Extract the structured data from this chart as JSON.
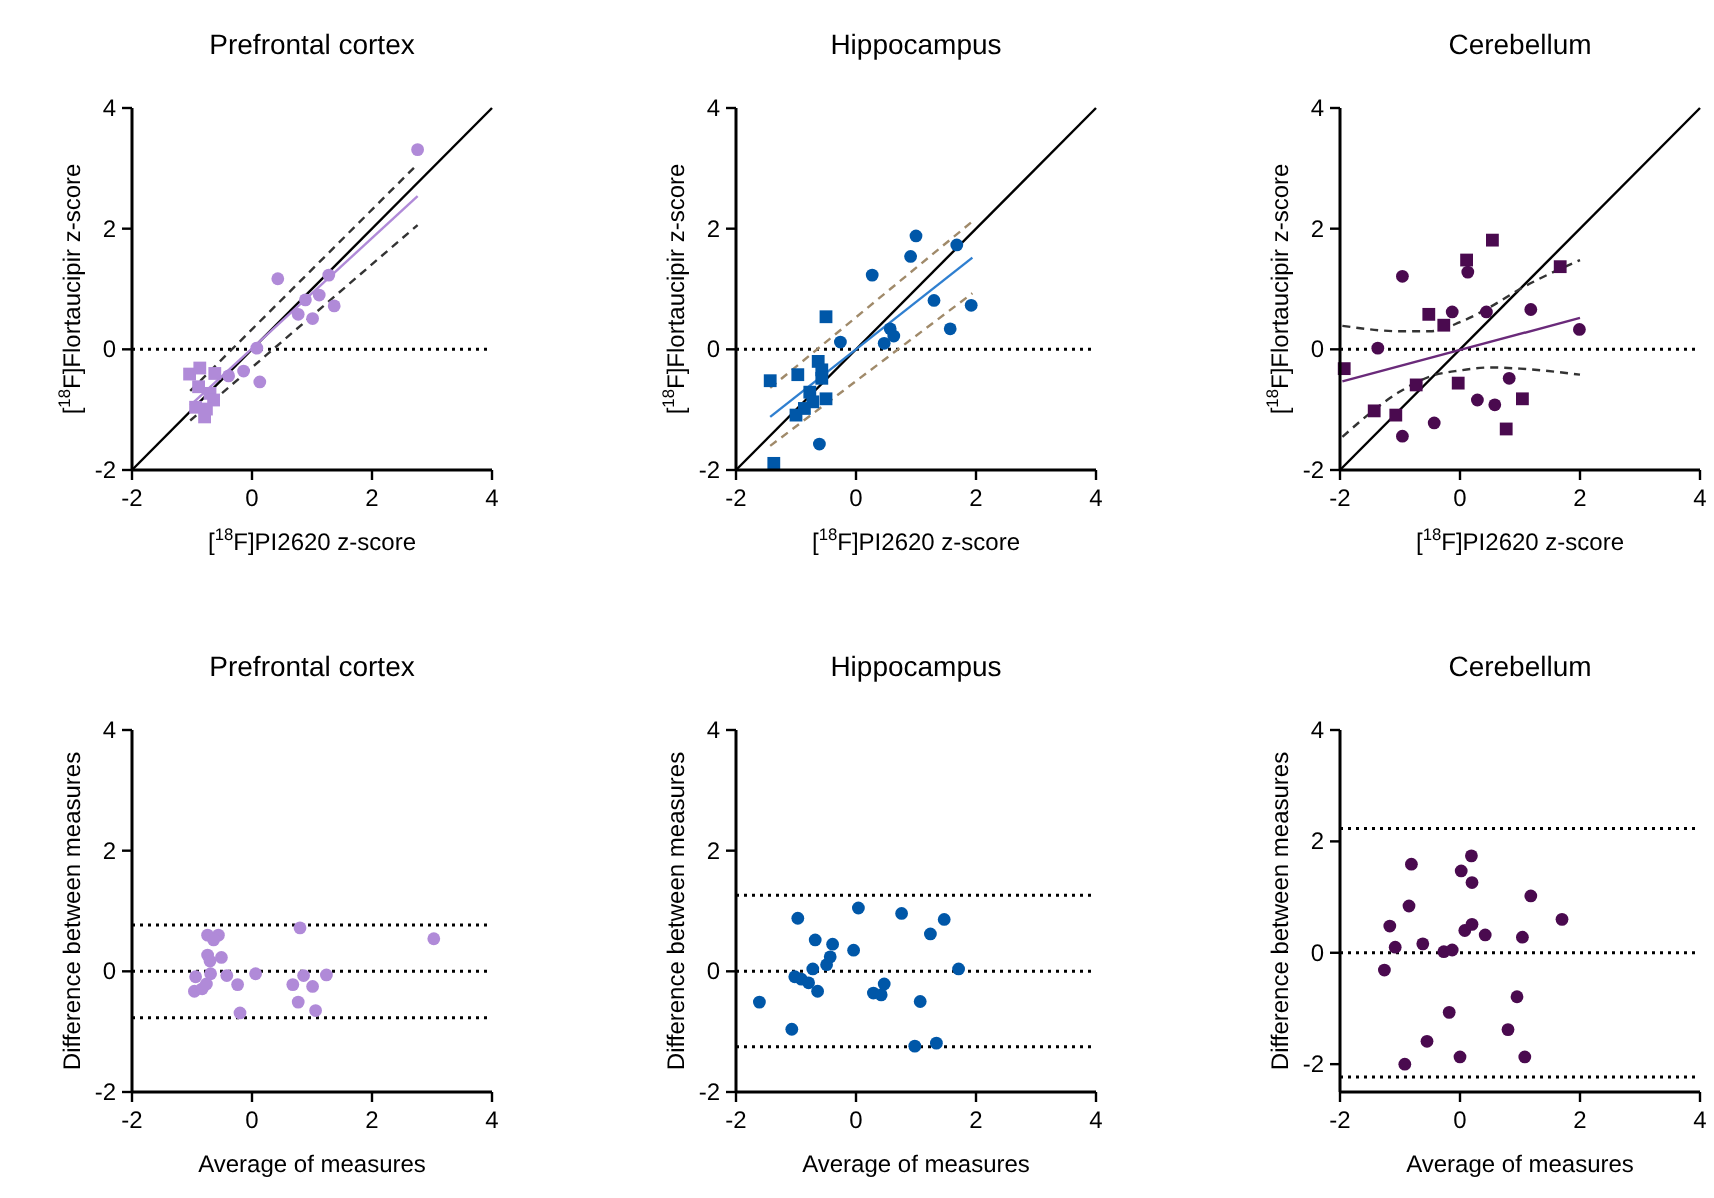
{
  "chart_data": [
    {
      "type": "scatter",
      "title": "Prefrontal cortex",
      "xlabel": "[$^{18}$F]PI2620 z-score",
      "ylabel": "[$^{18}$F]Flortaucipir z-score",
      "xlim": [
        -2,
        4
      ],
      "ylim": [
        -2,
        4
      ],
      "xticks": [
        -2,
        0,
        2,
        4
      ],
      "yticks": [
        -2,
        0,
        2,
        4
      ],
      "grid": false,
      "series": [
        {
          "type": "scatter",
          "marker": "circle",
          "color": "#b08ad8",
          "x": [
            2.76,
            0.43,
            1.28,
            0.89,
            1.12,
            0.77,
            1.01,
            1.37,
            0.08,
            -0.14,
            0.13,
            -0.39
          ],
          "values": [
            3.31,
            1.17,
            1.23,
            0.82,
            0.9,
            0.58,
            0.51,
            0.72,
            0.02,
            -0.36,
            -0.54,
            -0.44
          ]
        },
        {
          "type": "scatter",
          "marker": "square",
          "color": "#b08ad8",
          "x": [
            -1.04,
            -0.87,
            -0.62,
            -0.89,
            -0.7,
            -0.64,
            -0.94,
            -0.76,
            -0.79
          ],
          "values": [
            -0.41,
            -0.31,
            -0.4,
            -0.62,
            -0.73,
            -0.84,
            -0.96,
            -0.99,
            -1.12
          ]
        },
        {
          "type": "line",
          "line_style": "solid",
          "color": "#000000",
          "x": [
            -2,
            4
          ],
          "values": [
            -2,
            4
          ]
        },
        {
          "type": "line",
          "line_style": "solid",
          "color": "#b08ad8",
          "x": [
            -1.03,
            2.76
          ],
          "values": [
            -0.93,
            2.54
          ]
        },
        {
          "type": "line",
          "line_style": "dashed",
          "color": "#333333",
          "x": [
            -1.03,
            2.72
          ],
          "values": [
            -0.69,
            3.03
          ]
        },
        {
          "type": "line",
          "line_style": "dashed",
          "color": "#333333",
          "x": [
            -1.03,
            2.76
          ],
          "values": [
            -1.18,
            2.06
          ]
        }
      ],
      "ref_lines": [
        {
          "axis": "y",
          "value": 0,
          "color": "#000000",
          "line_style": "dotted"
        }
      ]
    },
    {
      "type": "scatter",
      "title": "Hippocampus",
      "xlabel": "[$^{18}$F]PI2620 z-score",
      "ylabel": "[$^{18}$F]Flortaucipir z-score",
      "xlim": [
        -2,
        4
      ],
      "ylim": [
        -2,
        4
      ],
      "xticks": [
        -2,
        0,
        2,
        4
      ],
      "yticks": [
        -2,
        0,
        2,
        4
      ],
      "grid": false,
      "series": [
        {
          "type": "scatter",
          "marker": "circle",
          "color": "#0057a8",
          "x": [
            1.0,
            0.91,
            0.27,
            1.68,
            1.3,
            1.92,
            1.57,
            0.57,
            0.63,
            0.47,
            -0.26,
            -0.61
          ],
          "values": [
            1.88,
            1.54,
            1.23,
            1.73,
            0.81,
            0.73,
            0.34,
            0.34,
            0.22,
            0.1,
            0.12,
            -1.57
          ]
        },
        {
          "type": "scatter",
          "marker": "square",
          "color": "#0057a8",
          "x": [
            -0.5,
            -1.43,
            -0.97,
            -0.63,
            -0.57,
            -0.57,
            -0.77,
            -0.5,
            -0.72,
            -0.86,
            -1.0,
            -1.37
          ],
          "values": [
            0.54,
            -0.52,
            -0.42,
            -0.2,
            -0.34,
            -0.48,
            -0.71,
            -0.82,
            -0.87,
            -0.98,
            -1.09,
            -1.89
          ]
        },
        {
          "type": "line",
          "line_style": "solid",
          "color": "#000000",
          "x": [
            -2,
            4
          ],
          "values": [
            -2,
            4
          ]
        },
        {
          "type": "line",
          "line_style": "solid",
          "color": "#2f7fd0",
          "x": [
            -1.43,
            1.94
          ],
          "values": [
            -1.12,
            1.52
          ]
        },
        {
          "type": "line",
          "line_style": "dashed",
          "color": "#a08a6a",
          "x": [
            -1.43,
            1.94
          ],
          "values": [
            -0.64,
            2.12
          ]
        },
        {
          "type": "line",
          "line_style": "dashed",
          "color": "#a08a6a",
          "x": [
            -1.43,
            1.94
          ],
          "values": [
            -1.6,
            0.93
          ]
        }
      ],
      "ref_lines": [
        {
          "axis": "y",
          "value": 0,
          "color": "#000000",
          "line_style": "dotted"
        }
      ]
    },
    {
      "type": "scatter",
      "title": "Cerebellum",
      "xlabel": "[$^{18}$F]PI2620 z-score",
      "ylabel": "[$^{18}$F]Flortaucipir z-score",
      "xlim": [
        -2,
        4
      ],
      "ylim": [
        -2,
        4
      ],
      "xticks": [
        -2,
        0,
        2,
        4
      ],
      "yticks": [
        -2,
        0,
        2,
        4
      ],
      "grid": false,
      "series": [
        {
          "type": "scatter",
          "marker": "circle",
          "color": "#4a0a4f",
          "x": [
            -0.96,
            0.13,
            -0.13,
            0.44,
            1.18,
            1.99,
            -1.37,
            0.82,
            0.29,
            0.58,
            -0.43,
            -0.96
          ],
          "values": [
            1.21,
            1.28,
            0.62,
            0.62,
            0.66,
            0.33,
            0.02,
            -0.48,
            -0.84,
            -0.92,
            -1.22,
            -1.44
          ]
        },
        {
          "type": "scatter",
          "marker": "square",
          "color": "#4a0a4f",
          "x": [
            0.54,
            0.11,
            1.67,
            -0.52,
            -0.27,
            -1.93,
            -0.73,
            -0.03,
            1.04,
            -1.43,
            -1.07,
            0.77
          ],
          "values": [
            1.81,
            1.48,
            1.37,
            0.58,
            0.4,
            -0.32,
            -0.59,
            -0.56,
            -0.82,
            -1.02,
            -1.09,
            -1.32
          ]
        },
        {
          "type": "line",
          "line_style": "solid",
          "color": "#000000",
          "x": [
            -2,
            4
          ],
          "values": [
            -2,
            4
          ]
        },
        {
          "type": "line",
          "line_style": "solid",
          "color": "#6a2a7a",
          "x": [
            -1.96,
            2.0
          ],
          "values": [
            -0.53,
            0.52
          ]
        },
        {
          "type": "line",
          "line_style": "dashed",
          "color": "#333333",
          "x": [
            -1.96,
            -1.0,
            -0.5,
            0,
            0.5,
            1.0,
            2.0
          ],
          "values": [
            0.39,
            0.3,
            0.3,
            0.45,
            0.7,
            1.0,
            1.48
          ]
        },
        {
          "type": "line",
          "line_style": "dashed",
          "color": "#333333",
          "x": [
            -1.96,
            -1.0,
            -0.5,
            0,
            0.5,
            1.0,
            2.0
          ],
          "values": [
            -1.45,
            -0.7,
            -0.45,
            -0.35,
            -0.3,
            -0.32,
            -0.42
          ]
        }
      ],
      "ref_lines": [
        {
          "axis": "y",
          "value": 0,
          "color": "#000000",
          "line_style": "dotted"
        }
      ]
    },
    {
      "type": "scatter",
      "title": "Prefrontal cortex",
      "xlabel": "Average of measures",
      "ylabel": "Difference between measures",
      "xlim": [
        -2,
        4
      ],
      "ylim": [
        -2,
        4
      ],
      "xticks": [
        -2,
        0,
        2,
        4
      ],
      "yticks": [
        -2,
        0,
        2,
        4
      ],
      "grid": false,
      "series": [
        {
          "type": "scatter",
          "marker": "circle",
          "color": "#b08ad8",
          "x": [
            0.8,
            3.03,
            -0.74,
            -0.56,
            -0.64,
            -0.74,
            -0.7,
            -0.51,
            -0.94,
            -0.69,
            -0.42,
            0.06,
            -0.24,
            -0.96,
            -0.83,
            -0.76,
            -0.2,
            0.68,
            0.86,
            1.01,
            1.24,
            0.77,
            1.06
          ],
          "values": [
            0.72,
            0.54,
            0.6,
            0.6,
            0.52,
            0.27,
            0.17,
            0.23,
            -0.09,
            -0.04,
            -0.07,
            -0.04,
            -0.22,
            -0.33,
            -0.29,
            -0.21,
            -0.69,
            -0.22,
            -0.07,
            -0.25,
            -0.06,
            -0.51,
            -0.65
          ]
        }
      ],
      "ref_lines": [
        {
          "axis": "y",
          "value": 0.77,
          "color": "#000000",
          "line_style": "dotted"
        },
        {
          "axis": "y",
          "value": 0,
          "color": "#000000",
          "line_style": "dotted"
        },
        {
          "axis": "y",
          "value": -0.77,
          "color": "#000000",
          "line_style": "dotted"
        }
      ]
    },
    {
      "type": "scatter",
      "title": "Hippocampus",
      "xlabel": "Average of measures",
      "ylabel": "Difference between measures",
      "xlim": [
        -2,
        4
      ],
      "ylim": [
        -2,
        4
      ],
      "xticks": [
        -2,
        0,
        2,
        4
      ],
      "yticks": [
        -2,
        0,
        2,
        4
      ],
      "grid": false,
      "series": [
        {
          "type": "scatter",
          "marker": "circle",
          "color": "#0057a8",
          "x": [
            -1.61,
            -1.07,
            -0.97,
            -0.68,
            -1.02,
            -0.91,
            -0.79,
            -0.72,
            -0.64,
            -0.49,
            -0.43,
            -0.39,
            -0.04,
            0.04,
            0.29,
            0.42,
            0.47,
            0.76,
            1.07,
            0.98,
            1.34,
            1.24,
            1.47,
            1.71
          ],
          "values": [
            -0.51,
            -0.96,
            0.88,
            0.52,
            -0.09,
            -0.13,
            -0.19,
            0.04,
            -0.33,
            0.11,
            0.24,
            0.45,
            0.35,
            1.05,
            -0.36,
            -0.39,
            -0.21,
            0.96,
            -0.5,
            -1.24,
            -1.19,
            0.62,
            0.86,
            0.04
          ]
        }
      ],
      "ref_lines": [
        {
          "axis": "y",
          "value": 1.26,
          "color": "#000000",
          "line_style": "dotted"
        },
        {
          "axis": "y",
          "value": 0,
          "color": "#000000",
          "line_style": "dotted"
        },
        {
          "axis": "y",
          "value": -1.25,
          "color": "#000000",
          "line_style": "dotted"
        }
      ]
    },
    {
      "type": "scatter",
      "title": "Cerebellum",
      "xlabel": "Average of measures",
      "ylabel": "Difference between measures",
      "xlim": [
        -2,
        4
      ],
      "ylim": [
        -2.5,
        4
      ],
      "xticks": [
        -2,
        0,
        2,
        4
      ],
      "yticks": [
        -2,
        0,
        2,
        4
      ],
      "grid": false,
      "series": [
        {
          "type": "scatter",
          "marker": "circle",
          "color": "#4a0a4f",
          "x": [
            -0.81,
            0.19,
            0.02,
            0.2,
            -0.85,
            -1.17,
            -1.08,
            -1.26,
            -0.62,
            -0.27,
            -0.13,
            0.08,
            0.2,
            0.42,
            1.18,
            1.04,
            1.7,
            -0.18,
            0.95,
            0.8,
            -0.55,
            -0.92,
            0.0,
            1.08
          ],
          "values": [
            1.59,
            1.74,
            1.47,
            1.26,
            0.84,
            0.48,
            0.1,
            -0.31,
            0.16,
            0.02,
            0.05,
            0.4,
            0.51,
            0.32,
            1.02,
            0.28,
            0.6,
            -1.07,
            -0.79,
            -1.38,
            -1.59,
            -2.0,
            -1.87,
            -1.87
          ]
        }
      ],
      "ref_lines": [
        {
          "axis": "y",
          "value": 2.23,
          "color": "#000000",
          "line_style": "dotted"
        },
        {
          "axis": "y",
          "value": 0,
          "color": "#000000",
          "line_style": "dotted"
        },
        {
          "axis": "y",
          "value": -2.23,
          "color": "#000000",
          "line_style": "dotted"
        }
      ]
    }
  ]
}
